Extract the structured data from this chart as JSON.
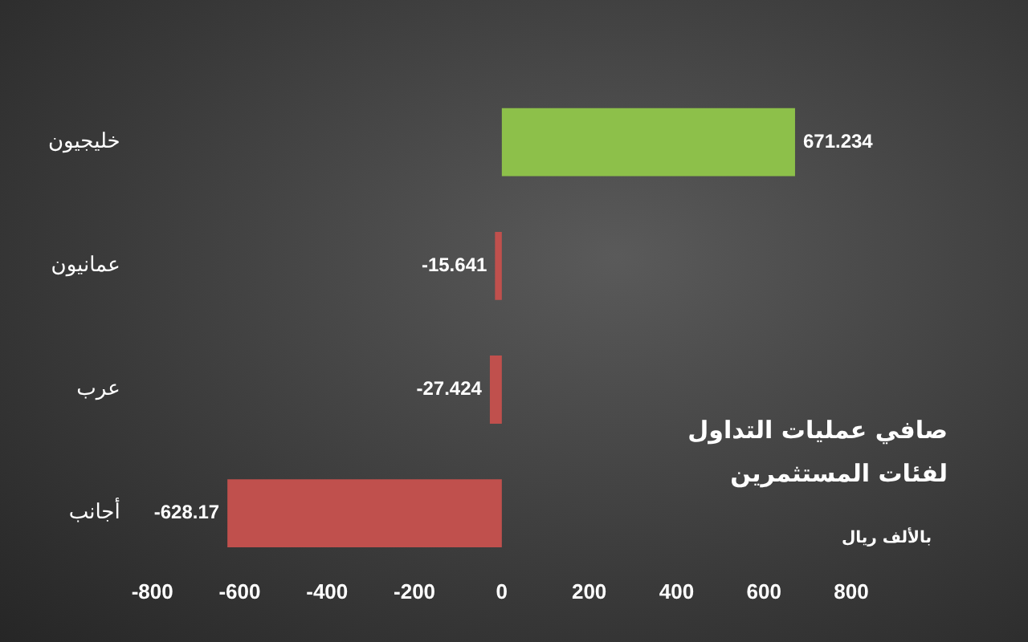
{
  "chart_data": {
    "type": "bar",
    "orientation": "horizontal",
    "title": "صافي عمليات التداول لفئات المستثمرين",
    "annotations": [
      "بالألف ريال"
    ],
    "categories": [
      "خليجيون",
      "عمانيون",
      "عرب",
      "أجانب"
    ],
    "values": [
      671.234,
      -15.641,
      -27.424,
      -628.17
    ],
    "colors": [
      "#8dc04a",
      "#c0504d",
      "#c0504d",
      "#c0504d"
    ],
    "data_labels": true,
    "xlim": [
      -800,
      800
    ],
    "xticks": [
      -800,
      -600,
      -400,
      -200,
      0,
      200,
      400,
      600,
      800
    ],
    "grid": false,
    "legend": false
  }
}
